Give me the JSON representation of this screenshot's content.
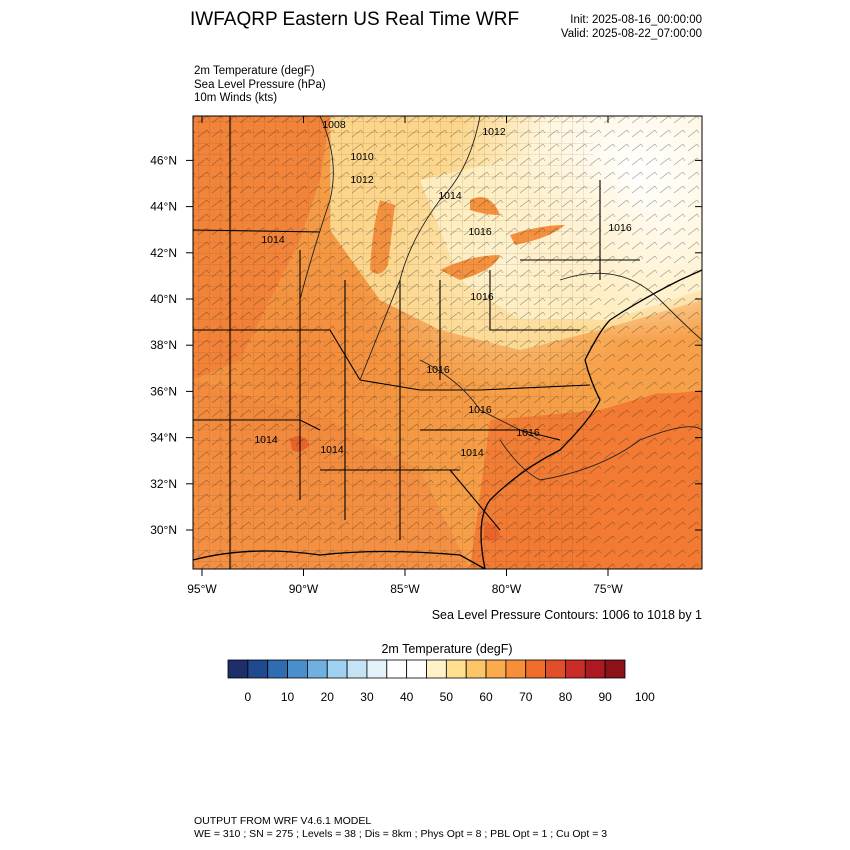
{
  "header": {
    "title": "IWFAQRP Eastern US Real Time WRF",
    "init": "Init: 2025-08-16_00:00:00",
    "valid": "Valid: 2025-08-22_07:00:00"
  },
  "fields": {
    "temp": "2m Temperature   (degF)",
    "slp": "Sea Level Pressure   (hPa)",
    "wind": "10m Winds   (kts)"
  },
  "map": {
    "lat_ticks": [
      "30°N",
      "32°N",
      "34°N",
      "36°N",
      "38°N",
      "40°N",
      "42°N",
      "44°N",
      "46°N"
    ],
    "lon_ticks": [
      "95°W",
      "90°W",
      "85°W",
      "80°W",
      "75°W"
    ],
    "slp_labels": [
      "1008",
      "1010",
      "1012",
      "1012",
      "1014",
      "1014",
      "1016",
      "1016",
      "1016",
      "1016",
      "1016",
      "1016",
      "1014",
      "1014",
      "1014"
    ],
    "slp_note": "Sea Level Pressure Contours: 1006 to 1018 by 1"
  },
  "colorbar": {
    "title": "2m Temperature  (degF)",
    "labels": [
      "0",
      "10",
      "20",
      "30",
      "40",
      "50",
      "60",
      "70",
      "80",
      "90",
      "100"
    ],
    "colors": [
      "#1c2f6b",
      "#1f4a8f",
      "#2f6db0",
      "#4a8fcc",
      "#6fb0e0",
      "#9fd2f2",
      "#c4e4f6",
      "#e4f2fa",
      "#ffffff",
      "#ffffff",
      "#fff1c8",
      "#fee08e",
      "#fdc56a",
      "#fbab4c",
      "#f78f3a",
      "#f06e2c",
      "#e04f2a",
      "#c92c27",
      "#ab1a21",
      "#8a1218"
    ]
  },
  "footer": {
    "line1": "OUTPUT FROM WRF V4.6.1 MODEL",
    "line2": "WE = 310 ; SN = 275 ; Levels = 38 ; Dis = 8km ; Phys Opt = 8 ; PBL Opt = 1 ; Cu Opt = 3"
  }
}
